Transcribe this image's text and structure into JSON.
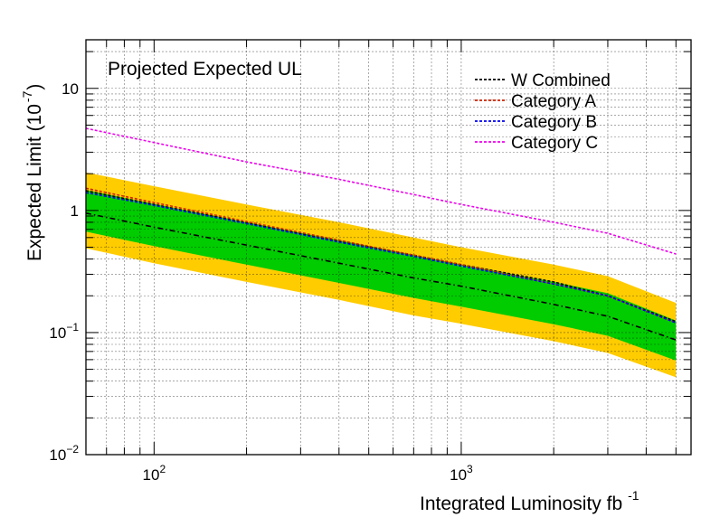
{
  "chart_data": {
    "type": "line",
    "title": "Projected Expected UL",
    "xlabel": "Integrated Luminosity fb",
    "xlabel_sup": "-1",
    "ylabel": "Expected Limit (10",
    "ylabel_sup": "-7",
    "ylabel_close": ")",
    "xscale": "log",
    "yscale": "log",
    "xlim": [
      60,
      5600
    ],
    "ylim": [
      0.01,
      25
    ],
    "grid": true,
    "legend_position": "top-right",
    "x_ticks": [
      {
        "value": 100,
        "base": "10",
        "exp": "2"
      },
      {
        "value": 1000,
        "base": "10",
        "exp": "3"
      }
    ],
    "y_ticks": [
      {
        "value": 0.01,
        "base": "10",
        "exp": "−2"
      },
      {
        "value": 0.1,
        "base": "10",
        "exp": "−1"
      },
      {
        "value": 1,
        "base": "1",
        "exp": ""
      },
      {
        "value": 10,
        "base": "10",
        "exp": ""
      }
    ],
    "x": [
      60,
      100,
      200,
      400,
      700,
      1000,
      2000,
      3000,
      5000
    ],
    "bands": [
      {
        "name": "",
        "color": "#ffcc00",
        "lower": [
          0.49,
          0.37,
          0.26,
          0.185,
          0.138,
          0.118,
          0.085,
          0.068,
          0.043
        ],
        "upper": [
          2.05,
          1.58,
          1.12,
          0.8,
          0.6,
          0.5,
          0.36,
          0.29,
          0.175
        ]
      },
      {
        "name": "",
        "color": "#00cc00",
        "lower": [
          0.67,
          0.51,
          0.36,
          0.255,
          0.192,
          0.163,
          0.117,
          0.094,
          0.059
        ],
        "upper": [
          1.47,
          1.13,
          0.8,
          0.57,
          0.43,
          0.36,
          0.26,
          0.21,
          0.125
        ]
      }
    ],
    "series": [
      {
        "name": "W Combined",
        "color": "#000000",
        "values": [
          1.45,
          1.12,
          0.79,
          0.56,
          0.43,
          0.36,
          0.26,
          0.2,
          0.123
        ]
      },
      {
        "name": "Category A",
        "color": "#cc2200",
        "values": [
          1.52,
          1.16,
          0.81,
          0.57,
          0.43,
          0.36,
          0.25,
          0.2,
          0.12
        ]
      },
      {
        "name": "Category B",
        "color": "#0000ee",
        "values": [
          1.4,
          1.1,
          0.78,
          0.55,
          0.42,
          0.35,
          0.25,
          0.2,
          0.12
        ]
      },
      {
        "name": "Category C",
        "color": "#ee00ee",
        "values": [
          4.7,
          3.6,
          2.5,
          1.8,
          1.35,
          1.12,
          0.8,
          0.65,
          0.44
        ]
      },
      {
        "name": "",
        "color": "#000000",
        "style": "dashdot",
        "values": [
          0.95,
          0.73,
          0.52,
          0.37,
          0.28,
          0.24,
          0.17,
          0.136,
          0.087
        ]
      }
    ]
  }
}
